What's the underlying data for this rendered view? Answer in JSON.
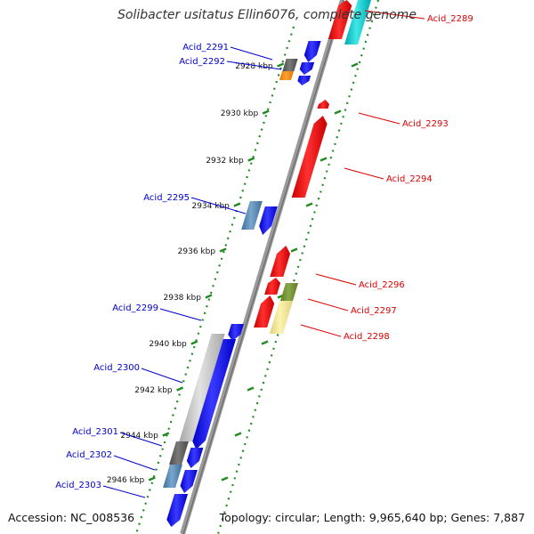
{
  "title": "Solibacter usitatus Ellin6076, complete genome",
  "footer": {
    "accession": "Accession: NC_008536",
    "summary": "Topology: circular; Length: 9,965,640 bp; Genes: 7,887"
  },
  "colors": {
    "forward_gene": "#0000ff",
    "reverse_gene": "#ff0000",
    "forward_label": "#0000cc",
    "reverse_label": "#dd0000",
    "backbone": "#888888",
    "ruler": "#228b22",
    "scale_text": "#111111"
  },
  "scale_labels": [
    "2928 kbp",
    "2930 kbp",
    "2932 kbp",
    "2934 kbp",
    "2936 kbp",
    "2938 kbp",
    "2940 kbp",
    "2942 kbp",
    "2944 kbp",
    "2946 kbp"
  ],
  "forward_labels": [
    "Acid_2291",
    "Acid_2292",
    "Acid_2295",
    "Acid_2299",
    "Acid_2300",
    "Acid_2301",
    "Acid_2302",
    "Acid_2303"
  ],
  "reverse_labels": [
    "Acid_2289",
    "Acid_2293",
    "Acid_2294",
    "Acid_2296",
    "Acid_2297",
    "Acid_2298"
  ]
}
